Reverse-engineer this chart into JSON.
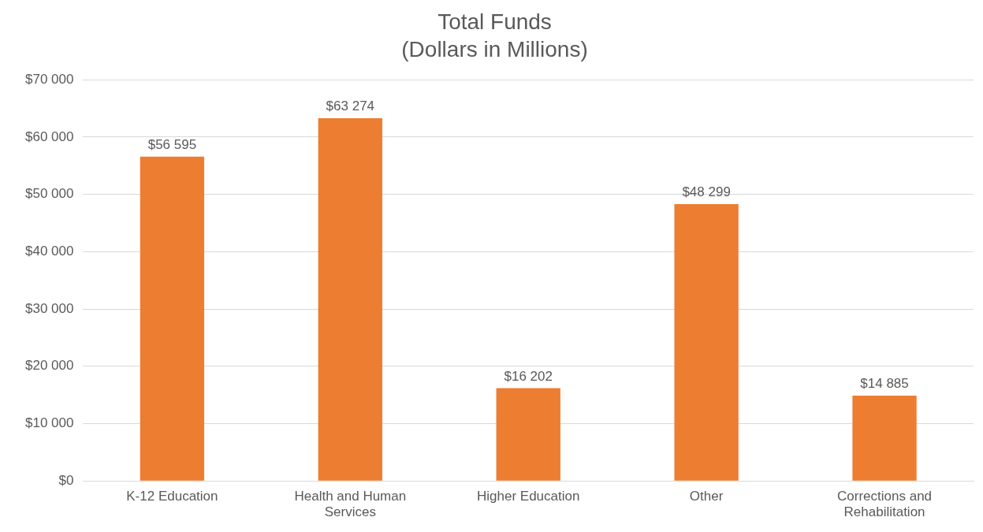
{
  "chart_data": {
    "type": "bar",
    "title": "Total Funds",
    "subtitle": "(Dollars in Millions)",
    "categories": [
      "K-12 Education",
      "Health and Human Services",
      "Higher Education",
      "Other",
      "Corrections and Rehabilitation"
    ],
    "values": [
      56595,
      63274,
      16202,
      48299,
      14885
    ],
    "value_labels": [
      "$56 595",
      "$63 274",
      "$16 202",
      "$48 299",
      "$14 885"
    ],
    "color": "#ed7d31",
    "ylim": [
      0,
      70000
    ],
    "yticks": [
      {
        "value": 0,
        "label": "$0"
      },
      {
        "value": 10000,
        "label": "$10 000"
      },
      {
        "value": 20000,
        "label": "$20 000"
      },
      {
        "value": 30000,
        "label": "$30 000"
      },
      {
        "value": 40000,
        "label": "$40 000"
      },
      {
        "value": 50000,
        "label": "$50 000"
      },
      {
        "value": 60000,
        "label": "$60 000"
      },
      {
        "value": 70000,
        "label": "$70 000"
      }
    ],
    "grid": "y"
  }
}
